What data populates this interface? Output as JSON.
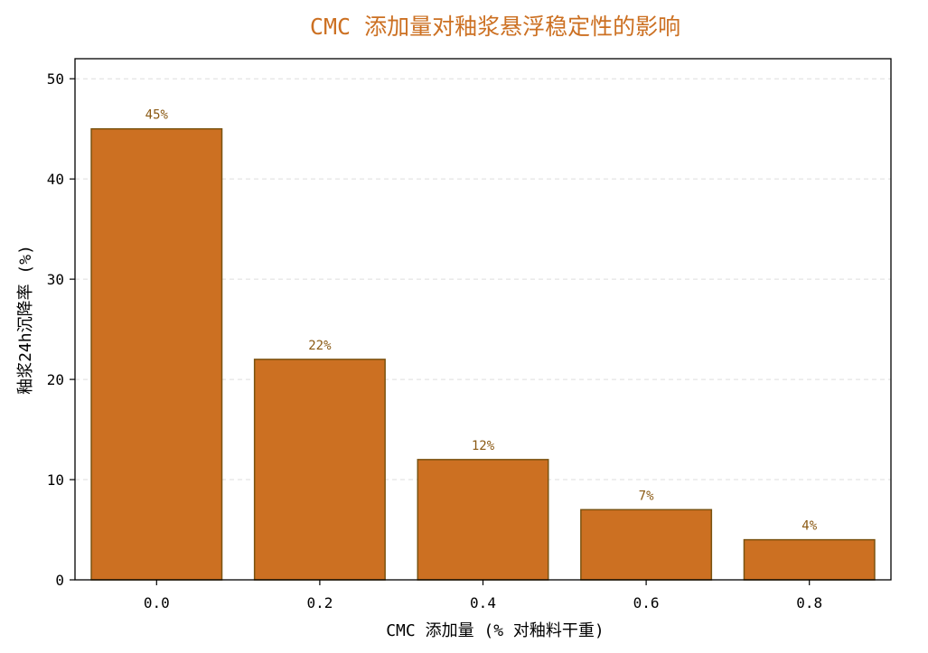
{
  "colors": {
    "bar_fill": "#CC7022",
    "bar_edge": "#7A5210",
    "title": "#CC7022",
    "data_label": "#8B5A14",
    "grid": "#dddddd"
  },
  "chart_data": {
    "type": "bar",
    "title": "CMC 添加量对釉浆悬浮稳定性的影响",
    "xlabel": "CMC 添加量 (% 对釉料干重)",
    "ylabel": "釉浆24h沉降率 (%)",
    "categories": [
      "0.0",
      "0.2",
      "0.4",
      "0.6",
      "0.8"
    ],
    "values": [
      45,
      22,
      12,
      7,
      4
    ],
    "data_labels": [
      "45%",
      "22%",
      "12%",
      "7%",
      "4%"
    ],
    "ylim": [
      0,
      52
    ],
    "yticks": [
      0,
      10,
      20,
      30,
      40,
      50
    ],
    "grid": true,
    "grid_axis": "y",
    "legend": false
  }
}
